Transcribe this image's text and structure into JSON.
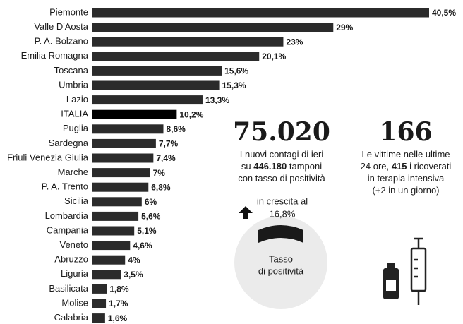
{
  "chart_data": {
    "type": "bar",
    "orientation": "horizontal",
    "categories": [
      "Piemonte",
      "Valle D'Aosta",
      "P. A. Bolzano",
      "Emilia Romagna",
      "Toscana",
      "Umbria",
      "Lazio",
      "ITALIA",
      "Puglia",
      "Sardegna",
      "Friuli Venezia Giulia",
      "Marche",
      "P. A. Trento",
      "Sicilia",
      "Lombardia",
      "Campania",
      "Veneto",
      "Abruzzo",
      "Liguria",
      "Basilicata",
      "Molise",
      "Calabria"
    ],
    "values": [
      40.5,
      29,
      23,
      20.1,
      15.6,
      15.3,
      13.3,
      10.2,
      8.6,
      7.7,
      7.4,
      7,
      6.8,
      6,
      5.6,
      5.1,
      4.6,
      4,
      3.5,
      1.8,
      1.7,
      1.6
    ],
    "value_labels": [
      "40,5%",
      "29%",
      "23%",
      "20,1%",
      "15,6%",
      "15,3%",
      "13,3%",
      "10,2%",
      "8,6%",
      "7,7%",
      "7,4%",
      "7%",
      "6,8%",
      "6%",
      "5,6%",
      "5,1%",
      "4,6%",
      "4%",
      "3,5%",
      "1,8%",
      "1,7%",
      "1,6%"
    ],
    "colors": [
      "#2b2b2b",
      "#2b2b2b",
      "#2b2b2b",
      "#2b2b2b",
      "#2b2b2b",
      "#2b2b2b",
      "#2b2b2b",
      "#000000",
      "#2b2b2b",
      "#2b2b2b",
      "#2b2b2b",
      "#2b2b2b",
      "#2b2b2b",
      "#2b2b2b",
      "#2b2b2b",
      "#2b2b2b",
      "#2b2b2b",
      "#2b2b2b",
      "#2b2b2b",
      "#2b2b2b",
      "#2b2b2b",
      "#2b2b2b"
    ],
    "annotations": {
      "contagi": {
        "number": "75.020",
        "lines": [
          [
            {
              "text": "I nuovi contagi di ieri",
              "bold": false
            }
          ],
          [
            {
              "text": "su ",
              "bold": false
            },
            {
              "text": "446.180",
              "bold": true
            },
            {
              "text": " tamponi",
              "bold": false
            }
          ],
          [
            {
              "text": "con tasso di positività",
              "bold": false
            }
          ]
        ]
      },
      "vittime": {
        "number": "166",
        "lines": [
          [
            {
              "text": "Le vittime nelle ultime",
              "bold": false
            }
          ],
          [
            {
              "text": "24 ore, ",
              "bold": false
            },
            {
              "text": "415",
              "bold": true
            },
            {
              "text": " i ricoverati",
              "bold": false
            }
          ],
          [
            {
              "text": "in terapia intensiva",
              "bold": false
            }
          ],
          [
            {
              "text": "(+2 in un giorno)",
              "bold": false
            }
          ]
        ]
      },
      "crescita": [
        "in crescita al",
        "16,8%"
      ],
      "gauge": [
        "Tasso",
        "di positività"
      ]
    }
  }
}
